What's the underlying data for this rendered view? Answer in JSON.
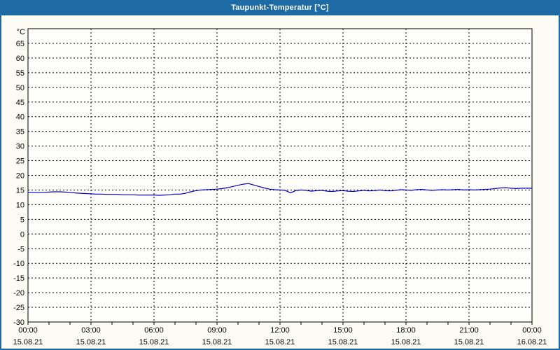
{
  "window": {
    "title": "Taupunkt-Temperatur [°C]",
    "colors": {
      "title_bar": "#1E6AA5",
      "title_text": "#FFFFFF",
      "border": "#1E6AA5",
      "content_bg": "#FCFCF4",
      "plot_bg": "#FEFEFA",
      "grid": "#000000",
      "axis": "#000000",
      "labels": "#000000"
    }
  },
  "chart_data": {
    "type": "line",
    "title": "Taupunkt-Temperatur [°C]",
    "y_unit_label": "°C",
    "ylim": [
      -30,
      70
    ],
    "y_ticks_top_to_bottom": [
      65,
      60,
      55,
      50,
      45,
      40,
      35,
      30,
      25,
      20,
      15,
      10,
      5,
      0,
      -5,
      -10,
      -15,
      -20,
      -25,
      -30
    ],
    "grid_style": "dashed",
    "legend": null,
    "x_axis": {
      "start_hour": 0,
      "end_hour": 24,
      "minor_tick_every_hours": 1,
      "major_tick_every_hours": 3,
      "major_ticks": [
        {
          "hour": 0,
          "time": "00:00",
          "date": "15.08.21"
        },
        {
          "hour": 3,
          "time": "03:00",
          "date": "15.08.21"
        },
        {
          "hour": 6,
          "time": "06:00",
          "date": "15.08.21"
        },
        {
          "hour": 9,
          "time": "09:00",
          "date": "15.08.21"
        },
        {
          "hour": 12,
          "time": "12:00",
          "date": "15.08.21"
        },
        {
          "hour": 15,
          "time": "15:00",
          "date": "15.08.21"
        },
        {
          "hour": 18,
          "time": "18:00",
          "date": "15.08.21"
        },
        {
          "hour": 21,
          "time": "21:00",
          "date": "15.08.21"
        },
        {
          "hour": 24,
          "time": "00:00",
          "date": "16.08.21"
        }
      ]
    },
    "series": [
      {
        "name": "Taupunkt-Temperatur",
        "color": "#0000C0",
        "x_start_hour": 0,
        "x_step_hours": 0.25,
        "values": [
          14.2,
          14.2,
          14.1,
          14.2,
          14.3,
          14.4,
          14.4,
          14.3,
          14.2,
          14.0,
          13.9,
          13.8,
          13.7,
          13.6,
          13.6,
          13.5,
          13.5,
          13.5,
          13.4,
          13.4,
          13.4,
          13.3,
          13.3,
          13.3,
          13.3,
          13.2,
          13.3,
          13.4,
          13.6,
          13.6,
          13.9,
          14.4,
          14.8,
          15.0,
          15.1,
          15.2,
          15.3,
          15.5,
          15.8,
          16.2,
          16.6,
          17.0,
          17.2,
          16.7,
          16.2,
          15.7,
          15.3,
          15.1,
          15.0,
          14.9,
          14.0,
          14.8,
          15.0,
          14.9,
          14.6,
          14.8,
          14.9,
          14.6,
          14.5,
          14.7,
          14.8,
          14.6,
          14.5,
          14.7,
          14.9,
          14.7,
          14.8,
          15.0,
          14.8,
          14.7,
          14.9,
          15.1,
          15.0,
          14.9,
          15.1,
          15.2,
          15.0,
          14.9,
          15.0,
          15.1,
          15.0,
          15.1,
          15.2,
          15.0,
          15.1,
          15.0,
          15.1,
          15.2,
          15.3,
          15.5,
          15.7,
          15.8,
          15.6,
          15.5,
          15.6,
          15.6,
          15.6
        ]
      }
    ]
  }
}
